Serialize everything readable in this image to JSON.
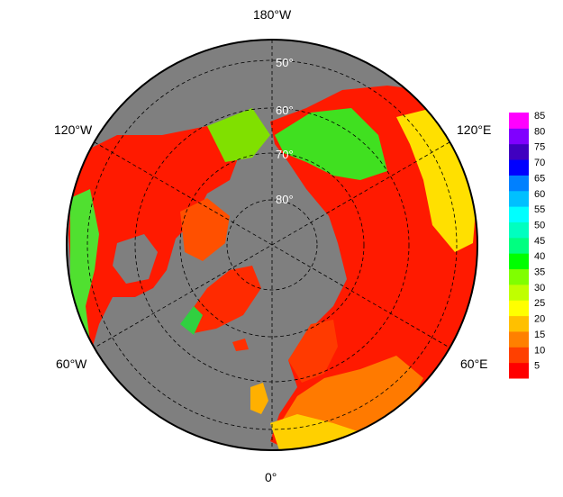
{
  "map": {
    "projection": "polar-stereographic-north",
    "ocean_color": "#7f7f7f",
    "longitude_labels": {
      "top": "180°W",
      "bottom": "0°",
      "upper_left": "120°W",
      "upper_right": "120°E",
      "lower_left": "60°W",
      "lower_right": "60°E"
    },
    "latitude_labels": [
      "50°",
      "60°",
      "70°",
      "80°"
    ]
  },
  "colorbar": {
    "ticks": [
      "85",
      "80",
      "75",
      "70",
      "65",
      "60",
      "55",
      "50",
      "45",
      "40",
      "35",
      "30",
      "25",
      "20",
      "15",
      "10",
      "5"
    ],
    "colors": [
      "#ff0000",
      "#ff4000",
      "#ff8000",
      "#ffc000",
      "#ffff00",
      "#c0ff00",
      "#80ff00",
      "#00ff00",
      "#00ff80",
      "#00ffc0",
      "#00ffff",
      "#00c0ff",
      "#0080ff",
      "#0000ff",
      "#4000c0",
      "#8000ff",
      "#ff00ff"
    ]
  }
}
